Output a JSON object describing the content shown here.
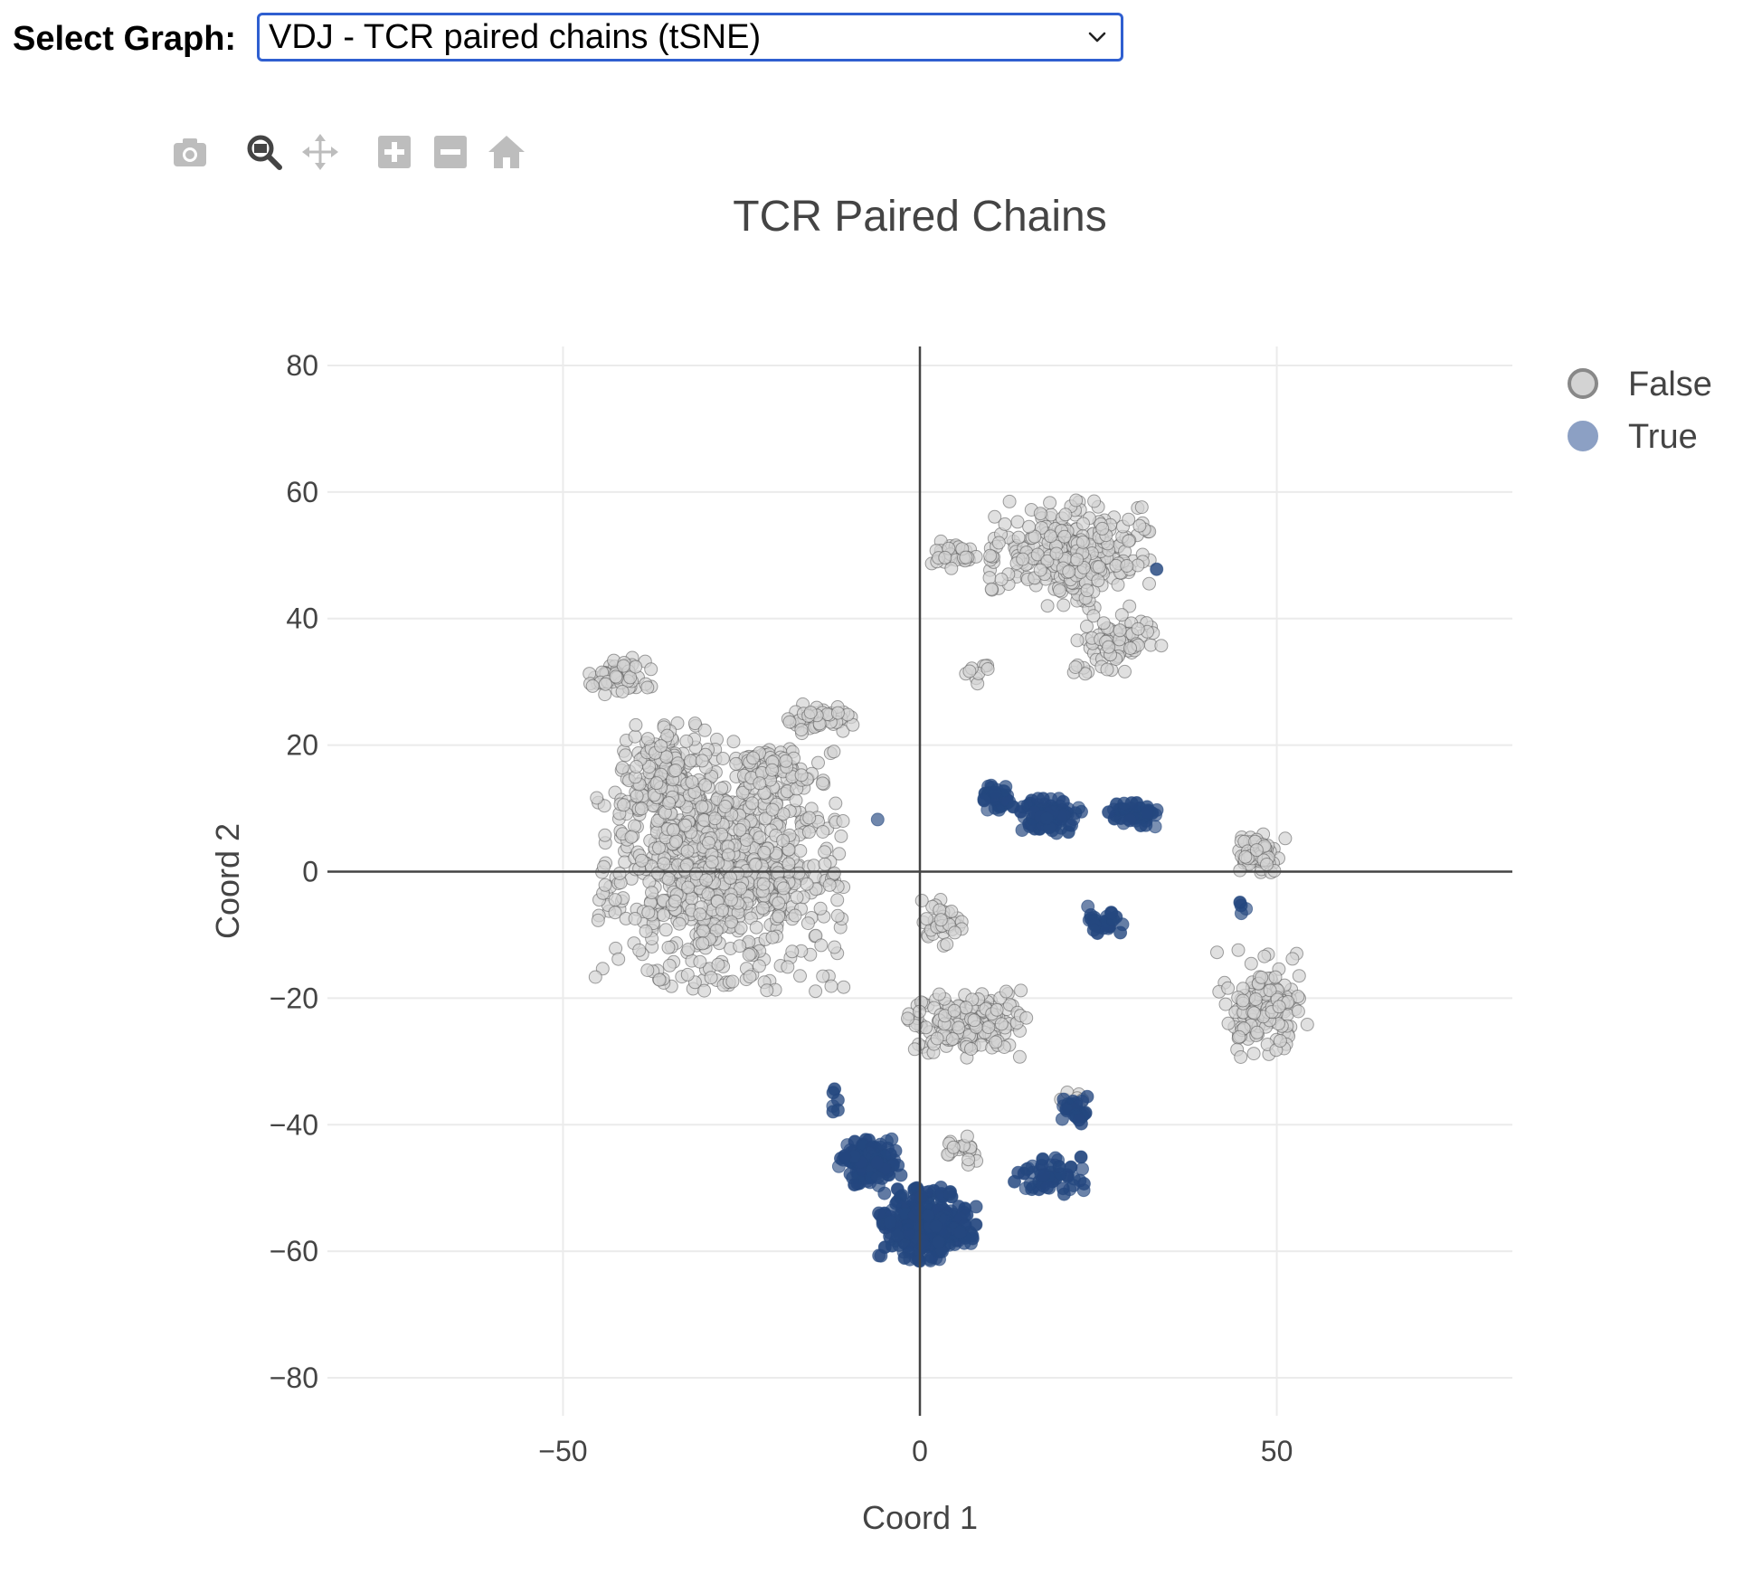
{
  "selector": {
    "label": "Select Graph:",
    "selected": "VDJ - TCR paired chains (tSNE)"
  },
  "modebar": [
    {
      "name": "camera-icon",
      "title": "Download plot as a png"
    },
    {
      "name": "zoom-icon",
      "title": "Zoom"
    },
    {
      "name": "pan-icon",
      "title": "Pan"
    },
    {
      "name": "zoom-in-icon",
      "title": "Zoom in"
    },
    {
      "name": "zoom-out-icon",
      "title": "Zoom out"
    },
    {
      "name": "home-icon",
      "title": "Reset axes"
    }
  ],
  "colors": {
    "accent": "#2f5fd0",
    "false_fill": "#d3d3d3",
    "false_stroke": "#555555",
    "true_fill": "#24477f",
    "true_legend": "#8ca0c4",
    "grid": "#ebebeb",
    "zeroline": "#444444",
    "tick": "#444444",
    "modebar_icon": "#bdbdbd",
    "modebar_active": "#444444"
  },
  "chart_data": {
    "type": "scatter",
    "title": "TCR Paired Chains",
    "xlabel": "Coord 1",
    "ylabel": "Coord 2",
    "xlim": [
      -83,
      83
    ],
    "ylim": [
      -86,
      83
    ],
    "xticks": [
      -50,
      0,
      50
    ],
    "xtick_labels": [
      "−50",
      "0",
      "50"
    ],
    "yticks": [
      80,
      60,
      40,
      20,
      0,
      -20,
      -40,
      -60,
      -80
    ],
    "ytick_labels": [
      "80",
      "60",
      "40",
      "20",
      "0",
      "−20",
      "−40",
      "−60",
      "−80"
    ],
    "grid": true,
    "legend_position": "top-right",
    "series": [
      {
        "name": "False",
        "clusters": [
          {
            "cx": -28,
            "cy": 1,
            "rx": 14,
            "ry": 16,
            "n": 900
          },
          {
            "cx": -36,
            "cy": 14,
            "rx": 5,
            "ry": 8,
            "n": 150
          },
          {
            "cx": -20,
            "cy": 16,
            "rx": 4,
            "ry": 3,
            "n": 60
          },
          {
            "cx": -42,
            "cy": 31,
            "rx": 3.5,
            "ry": 2.5,
            "n": 60
          },
          {
            "cx": -14,
            "cy": 24,
            "rx": 4,
            "ry": 2,
            "n": 50
          },
          {
            "cx": 21,
            "cy": 50,
            "rx": 9,
            "ry": 7,
            "n": 320
          },
          {
            "cx": 28,
            "cy": 36,
            "rx": 5,
            "ry": 4,
            "n": 70
          },
          {
            "cx": 5,
            "cy": 50,
            "rx": 3,
            "ry": 1.8,
            "n": 30
          },
          {
            "cx": 8,
            "cy": 31,
            "rx": 1.5,
            "ry": 2,
            "n": 10
          },
          {
            "cx": 22,
            "cy": 32,
            "rx": 1,
            "ry": 1,
            "n": 5
          },
          {
            "cx": 47,
            "cy": 3,
            "rx": 3.5,
            "ry": 3,
            "n": 60
          },
          {
            "cx": 48,
            "cy": -21,
            "rx": 5.5,
            "ry": 7,
            "n": 150
          },
          {
            "cx": 7,
            "cy": -24,
            "rx": 7,
            "ry": 4.5,
            "n": 180
          },
          {
            "cx": 3,
            "cy": -8,
            "rx": 2.5,
            "ry": 3,
            "n": 40
          },
          {
            "cx": 5,
            "cy": -44,
            "rx": 3,
            "ry": 2,
            "n": 20
          },
          {
            "cx": 21,
            "cy": -36,
            "rx": 2,
            "ry": 1.5,
            "n": 10
          }
        ]
      },
      {
        "name": "True",
        "clusters": [
          {
            "cx": 1,
            "cy": -56,
            "rx": 5.5,
            "ry": 5,
            "n": 300
          },
          {
            "cx": -7,
            "cy": -46,
            "rx": 3.5,
            "ry": 3,
            "n": 140
          },
          {
            "cx": 11,
            "cy": 12,
            "rx": 2,
            "ry": 2,
            "n": 40
          },
          {
            "cx": 18,
            "cy": 9,
            "rx": 4,
            "ry": 2.5,
            "n": 90
          },
          {
            "cx": 30,
            "cy": 9,
            "rx": 3.5,
            "ry": 1.5,
            "n": 50
          },
          {
            "cx": 26,
            "cy": -8,
            "rx": 2.5,
            "ry": 2,
            "n": 30
          },
          {
            "cx": 22,
            "cy": -38,
            "rx": 2,
            "ry": 2,
            "n": 30
          },
          {
            "cx": 18,
            "cy": -48,
            "rx": 4,
            "ry": 2.5,
            "n": 50
          },
          {
            "cx": -12,
            "cy": -36,
            "rx": 1,
            "ry": 2,
            "n": 6
          },
          {
            "cx": -6,
            "cy": 8,
            "rx": 0.2,
            "ry": 0.2,
            "n": 1
          },
          {
            "cx": 33,
            "cy": 48,
            "rx": 0.2,
            "ry": 0.2,
            "n": 1
          },
          {
            "cx": 45,
            "cy": -6,
            "rx": 1,
            "ry": 1.5,
            "n": 4
          }
        ]
      }
    ]
  }
}
